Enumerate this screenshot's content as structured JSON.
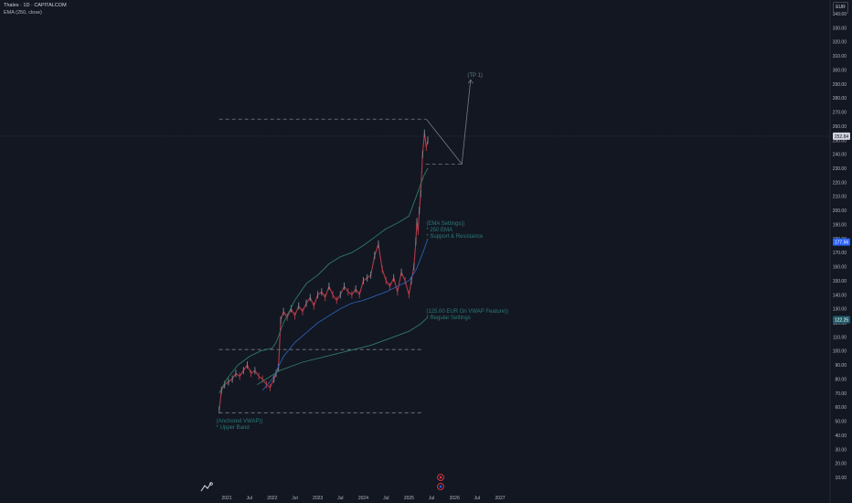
{
  "header": {
    "symbol_line": "Thales · 1D · CAPITALCOM",
    "indicator_line": "EMA (250, close)"
  },
  "currency_button": "EUR",
  "colors": {
    "background": "#131722",
    "candle_up": "#7c8c94",
    "candle_down": "#b23a48",
    "ema": "#2a5fb0",
    "vwap_band": "#2f7a66",
    "annotation_text": "#2a7b78",
    "tp_text": "#5c7f7f",
    "price_badge": "#d1d4dc",
    "ema_badge": "#2962ff",
    "vwap_badge": "#1e5a6a",
    "dashed": "#787b86",
    "icon": "#f23645"
  },
  "chart_data": {
    "type": "line",
    "title": "",
    "xlabel": "",
    "ylabel": "",
    "ylim": [
      5,
      344
    ],
    "grid": false,
    "y_ticks": [
      10,
      20,
      30,
      40,
      50,
      60,
      70,
      80,
      90,
      100,
      110,
      120,
      130,
      140,
      150,
      160,
      170,
      180,
      190,
      200,
      210,
      220,
      230,
      240,
      250,
      260,
      270,
      280,
      290,
      300,
      310,
      320,
      330,
      340
    ],
    "x_ticks": [
      "2021",
      "Jul",
      "2022",
      "Jul",
      "2023",
      "Jul",
      "2024",
      "Jul",
      "2025",
      "Jul",
      "2026",
      "Jul",
      "2027"
    ],
    "series": [
      {
        "key": "price",
        "x": [
          "2020-11-02",
          "2020-11-20",
          "2020-12-15",
          "2021-01-15",
          "2021-02-15",
          "2021-03-15",
          "2021-04-15",
          "2021-05-15",
          "2021-06-15",
          "2021-07-15",
          "2021-08-15",
          "2021-09-15",
          "2021-10-15",
          "2021-11-15",
          "2021-12-15",
          "2022-01-15",
          "2022-02-01",
          "2022-02-20",
          "2022-03-10",
          "2022-04-01",
          "2022-05-01",
          "2022-06-01",
          "2022-07-01",
          "2022-08-01",
          "2022-09-01",
          "2022-10-01",
          "2022-11-01",
          "2022-12-01",
          "2023-01-01",
          "2023-02-01",
          "2023-03-01",
          "2023-04-01",
          "2023-05-01",
          "2023-06-01",
          "2023-07-01",
          "2023-08-01",
          "2023-09-01",
          "2023-10-01",
          "2023-11-01",
          "2023-12-01",
          "2024-01-01",
          "2024-02-01",
          "2024-03-01",
          "2024-04-01",
          "2024-05-01",
          "2024-06-01",
          "2024-07-01",
          "2024-08-01",
          "2024-09-01",
          "2024-10-01",
          "2024-11-01",
          "2024-12-01",
          "2025-01-01",
          "2025-01-20",
          "2025-02-10",
          "2025-02-25",
          "2025-03-05",
          "2025-03-15",
          "2025-03-25",
          "2025-04-05",
          "2025-04-20",
          "2025-05-05",
          "2025-05-20",
          "2025-06-01"
        ],
        "y": [
          58,
          72,
          76,
          78,
          80,
          84,
          82,
          86,
          90,
          84,
          86,
          82,
          80,
          76,
          74,
          80,
          84,
          88,
          122,
          128,
          124,
          130,
          125,
          132,
          128,
          134,
          138,
          132,
          140,
          142,
          138,
          146,
          140,
          136,
          140,
          146,
          142,
          140,
          144,
          140,
          150,
          152,
          154,
          168,
          176,
          158,
          150,
          146,
          152,
          142,
          156,
          150,
          140,
          150,
          160,
          178,
          192,
          185,
          200,
          212,
          240,
          255,
          245,
          250
        ]
      },
      {
        "key": "ema250",
        "x": [
          "2021-10-15",
          "2022-01-01",
          "2022-04-01",
          "2022-07-01",
          "2022-10-01",
          "2023-01-01",
          "2023-04-01",
          "2023-07-01",
          "2023-10-01",
          "2024-01-01",
          "2024-04-01",
          "2024-07-01",
          "2024-10-01",
          "2025-01-01",
          "2025-03-01",
          "2025-05-01",
          "2025-06-01"
        ],
        "y": [
          72,
          80,
          96,
          106,
          113,
          120,
          125,
          130,
          134,
          136,
          139,
          142,
          146,
          150,
          158,
          172,
          180
        ]
      },
      {
        "key": "vwap_upper",
        "x": [
          "2020-11-02",
          "2021-01-01",
          "2021-04-01",
          "2021-07-01",
          "2021-10-01",
          "2022-01-01",
          "2022-02-01",
          "2022-04-01",
          "2022-07-01",
          "2022-10-01",
          "2023-01-01",
          "2023-04-01",
          "2023-07-01",
          "2023-10-01",
          "2024-01-01",
          "2024-04-01",
          "2024-07-01",
          "2024-10-01",
          "2025-01-01",
          "2025-03-01",
          "2025-05-01",
          "2025-06-01"
        ],
        "y": [
          70,
          80,
          90,
          96,
          100,
          102,
          106,
          120,
          136,
          148,
          154,
          162,
          167,
          170,
          175,
          181,
          187,
          191,
          196,
          210,
          225,
          230
        ]
      },
      {
        "key": "vwap_mid",
        "x": [
          "2021-09-01",
          "2022-03-01",
          "2022-09-01",
          "2023-03-01",
          "2023-09-01",
          "2024-03-01",
          "2024-09-01",
          "2025-01-01",
          "2025-04-01",
          "2025-06-01"
        ],
        "y": [
          76,
          86,
          92,
          96,
          100,
          104,
          110,
          114,
          119,
          124
        ]
      },
      {
        "key": "projection",
        "x": [
          "2025-05-20",
          "2026-03-01",
          "2026-05-10"
        ],
        "y": [
          265,
          233,
          293
        ]
      }
    ],
    "price_badges": [
      {
        "value": "252.84",
        "y": 252.84
      },
      {
        "value": "177.56",
        "y": 177.56
      },
      {
        "value": "122.25",
        "y": 122.25
      }
    ],
    "levels": [
      {
        "y": 265,
        "x_from": "2020-11-01",
        "x_to": "2025-05-15"
      },
      {
        "y": 233,
        "x_from": "2025-05-15",
        "x_to": "2026-03-15"
      },
      {
        "y": 101,
        "x_from": "2020-11-01",
        "x_to": "2025-05-01"
      },
      {
        "y": 56,
        "x_from": "2020-11-01",
        "x_to": "2025-05-01"
      }
    ],
    "annotations": [
      {
        "lines": [
          "(TP 1)"
        ],
        "x": "2026-04-15",
        "y": 296,
        "color": "tp"
      },
      {
        "lines": [
          "(EMA Settings))",
          "* 250 EMA",
          "* Support & Resistance"
        ],
        "x": "2025-05-20",
        "y": 190,
        "color": "note"
      },
      {
        "lines": [
          "(125.00 EUR On VWAP Feature))",
          "* Regular Settings"
        ],
        "x": "2025-05-20",
        "y": 128,
        "color": "note"
      },
      {
        "lines": [
          "(Anchored VWAP))",
          "* Upper Band"
        ],
        "x": "2020-10-10",
        "y": 50,
        "color": "note"
      }
    ],
    "event_icons": [
      "2025-05-10",
      "2025-05-10"
    ]
  }
}
